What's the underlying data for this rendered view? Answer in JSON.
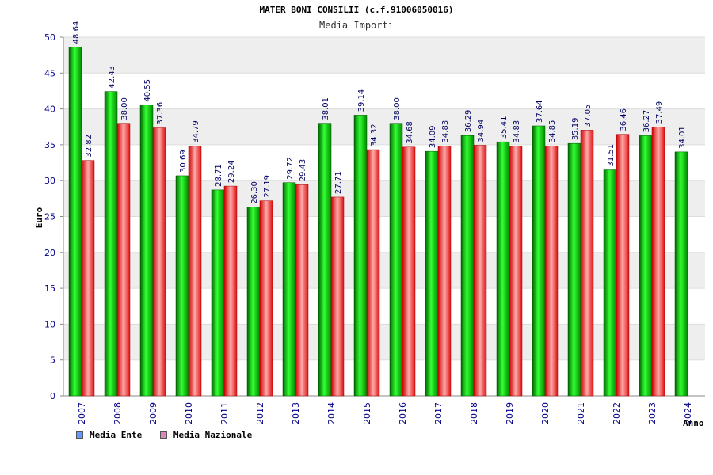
{
  "chart_data": {
    "type": "bar",
    "title": "MATER BONI CONSILII (c.f.91006050016)",
    "subtitle": "Media Importi",
    "ylabel": "Euro",
    "xlabel": "Anno",
    "ylim": [
      0,
      50
    ],
    "yticks": [
      "0",
      "5",
      "10",
      "15",
      "20",
      "25",
      "30",
      "35",
      "40",
      "45",
      "50"
    ],
    "grid": true,
    "legend_placement": "bottom-left",
    "categories": [
      "2007",
      "2008",
      "2009",
      "2010",
      "2011",
      "2012",
      "2013",
      "2014",
      "2015",
      "2016",
      "2017",
      "2018",
      "2019",
      "2020",
      "2021",
      "2022",
      "2023",
      "2024"
    ],
    "series": [
      {
        "name": "Media Ente",
        "legend_color": "#6699ff",
        "bar_color": "#00cc00",
        "values": [
          48.64,
          42.43,
          40.55,
          30.69,
          28.71,
          26.3,
          29.72,
          38.01,
          39.14,
          38.0,
          34.09,
          36.29,
          35.41,
          37.64,
          35.19,
          31.51,
          36.27,
          34.01
        ],
        "labels": [
          "48.64",
          "42.43",
          "40.55",
          "30.69",
          "28.71",
          "26.30",
          "29.72",
          "38.01",
          "39.14",
          "38.00",
          "34.09",
          "36.29",
          "35.41",
          "37.64",
          "35.19",
          "31.51",
          "36.27",
          "34.01"
        ]
      },
      {
        "name": "Media Nazionale",
        "legend_color": "#dd88bb",
        "bar_color": "#ee2222",
        "values": [
          32.82,
          38.0,
          37.36,
          34.79,
          29.24,
          27.19,
          29.43,
          27.71,
          34.32,
          34.68,
          34.83,
          34.94,
          34.83,
          34.85,
          37.05,
          36.46,
          37.49,
          null
        ],
        "labels": [
          "32.82",
          "38.00",
          "37.36",
          "34.79",
          "29.24",
          "27.19",
          "29.43",
          "27.71",
          "34.32",
          "34.68",
          "34.83",
          "34.94",
          "34.83",
          "34.85",
          "37.05",
          "36.46",
          "37.49",
          ""
        ]
      }
    ]
  }
}
